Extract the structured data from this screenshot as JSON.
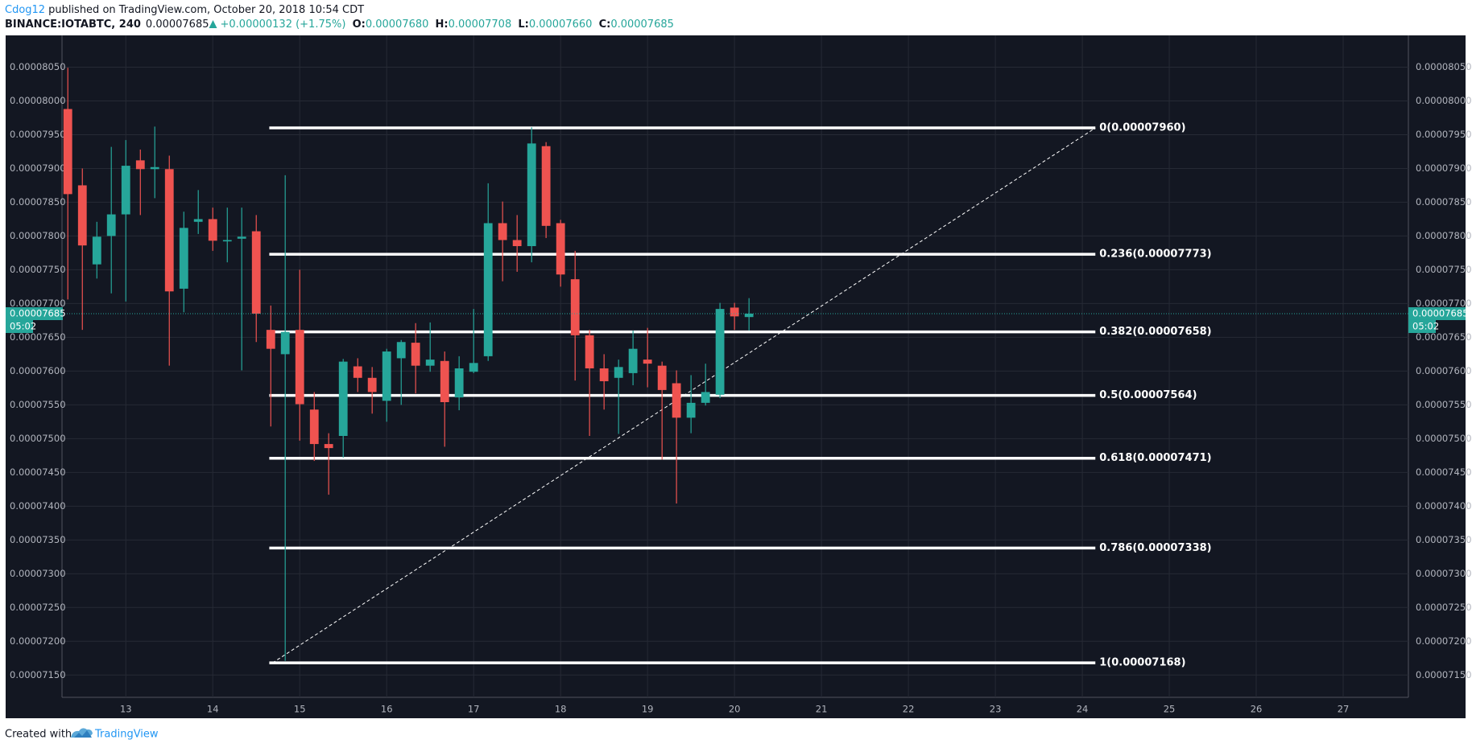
{
  "header": {
    "author": "Cdog12",
    "published": "published on TradingView.com, October 20, 2018 10:54 CDT",
    "symbol": "BINANCE:IOTABTC, 240",
    "price": "0.00007685",
    "change": "+0.00000132 (+1.75%)",
    "ohlc": [
      {
        "key": "O:",
        "value": "0.00007680"
      },
      {
        "key": "H:",
        "value": "0.00007708"
      },
      {
        "key": "L:",
        "value": "0.00007660"
      },
      {
        "key": "C:",
        "value": "0.00007685"
      }
    ]
  },
  "footer": {
    "created": "Created with",
    "brand": "TradingView"
  },
  "chart_data": {
    "type": "candlestick",
    "up_color": "#26a69a",
    "down_color": "#ef5350",
    "grid": true,
    "xlim": [
      12.266,
      27.75
    ],
    "xticks": [
      13,
      14,
      15,
      16,
      17,
      18,
      19,
      20,
      21,
      22,
      23,
      24,
      25,
      26,
      27
    ],
    "ylim": [
      7.117e-05,
      8.097e-05
    ],
    "yticks": [
      {
        "value": 7.15e-05,
        "label": "0.00007150"
      },
      {
        "value": 7.2e-05,
        "label": "0.00007200"
      },
      {
        "value": 7.25e-05,
        "label": "0.00007250"
      },
      {
        "value": 7.3e-05,
        "label": "0.00007300"
      },
      {
        "value": 7.35e-05,
        "label": "0.00007350"
      },
      {
        "value": 7.4e-05,
        "label": "0.00007400"
      },
      {
        "value": 7.45e-05,
        "label": "0.00007450"
      },
      {
        "value": 7.5e-05,
        "label": "0.00007500"
      },
      {
        "value": 7.55e-05,
        "label": "0.00007550"
      },
      {
        "value": 7.6e-05,
        "label": "0.00007600"
      },
      {
        "value": 7.65e-05,
        "label": "0.00007650"
      },
      {
        "value": 7.7e-05,
        "label": "0.00007700"
      },
      {
        "value": 7.75e-05,
        "label": "0.00007750"
      },
      {
        "value": 7.8e-05,
        "label": "0.00007800"
      },
      {
        "value": 7.85e-05,
        "label": "0.00007850"
      },
      {
        "value": 7.9e-05,
        "label": "0.00007900"
      },
      {
        "value": 7.95e-05,
        "label": "0.00007950"
      },
      {
        "value": 8e-05,
        "label": "0.00008000"
      },
      {
        "value": 8.05e-05,
        "label": "0.00008050"
      }
    ],
    "x": [
      12.333,
      12.5,
      12.667,
      12.833,
      13,
      13.167,
      13.333,
      13.5,
      13.667,
      13.833,
      14,
      14.167,
      14.333,
      14.5,
      14.667,
      14.833,
      15,
      15.167,
      15.333,
      15.5,
      15.667,
      15.833,
      16,
      16.167,
      16.333,
      16.5,
      16.667,
      16.833,
      17,
      17.167,
      17.333,
      17.5,
      17.667,
      17.833,
      18,
      18.167,
      18.333,
      18.5,
      18.667,
      18.833,
      19,
      19.167,
      19.333,
      19.5,
      19.667,
      19.833,
      20,
      20.167
    ],
    "open": [
      7.988e-05,
      7.875e-05,
      7.758e-05,
      7.8e-05,
      7.832e-05,
      7.912e-05,
      7.899e-05,
      7.899e-05,
      7.722e-05,
      7.821e-05,
      7.825e-05,
      7.792e-05,
      7.796e-05,
      7.807e-05,
      7.661e-05,
      7.625e-05,
      7.661e-05,
      7.543e-05,
      7.492e-05,
      7.504e-05,
      7.607e-05,
      7.59e-05,
      7.556e-05,
      7.619e-05,
      7.642e-05,
      7.608e-05,
      7.615e-05,
      7.561e-05,
      7.599e-05,
      7.622e-05,
      7.819e-05,
      7.794e-05,
      7.785e-05,
      7.933e-05,
      7.819e-05,
      7.736e-05,
      7.653e-05,
      7.604e-05,
      7.59e-05,
      7.597e-05,
      7.617e-05,
      7.608e-05,
      7.582e-05,
      7.531e-05,
      7.553e-05,
      7.565e-05,
      7.694e-05,
      7.68e-05
    ],
    "high": [
      8.049e-05,
      7.9e-05,
      7.821e-05,
      7.932e-05,
      7.942e-05,
      7.928e-05,
      7.962e-05,
      7.919e-05,
      7.836e-05,
      7.868e-05,
      7.842e-05,
      7.842e-05,
      7.842e-05,
      7.831e-05,
      7.697e-05,
      7.89e-05,
      7.75e-05,
      7.569e-05,
      7.508e-05,
      7.618e-05,
      7.619e-05,
      7.606e-05,
      7.633e-05,
      7.646e-05,
      7.671e-05,
      7.672e-05,
      7.629e-05,
      7.622e-05,
      7.692e-05,
      7.878e-05,
      7.851e-05,
      7.831e-05,
      7.961e-05,
      7.939e-05,
      7.824e-05,
      7.778e-05,
      7.661e-05,
      7.625e-05,
      7.617e-05,
      7.66e-05,
      7.664e-05,
      7.614e-05,
      7.601e-05,
      7.594e-05,
      7.611e-05,
      7.701e-05,
      7.701e-05,
      7.708e-05
    ],
    "low": [
      7.706e-05,
      7.661e-05,
      7.737e-05,
      7.715e-05,
      7.703e-05,
      7.831e-05,
      7.856e-05,
      7.608e-05,
      7.687e-05,
      7.803e-05,
      7.778e-05,
      7.761e-05,
      7.601e-05,
      7.643e-05,
      7.518e-05,
      7.171e-05,
      7.497e-05,
      7.467e-05,
      7.417e-05,
      7.472e-05,
      7.569e-05,
      7.537e-05,
      7.525e-05,
      7.55e-05,
      7.567e-05,
      7.599e-05,
      7.488e-05,
      7.542e-05,
      7.597e-05,
      7.615e-05,
      7.733e-05,
      7.747e-05,
      7.761e-05,
      7.797e-05,
      7.725e-05,
      7.586e-05,
      7.504e-05,
      7.543e-05,
      7.507e-05,
      7.579e-05,
      7.576e-05,
      7.469e-05,
      7.404e-05,
      7.508e-05,
      7.549e-05,
      7.56e-05,
      7.661e-05,
      7.66e-05
    ],
    "close": [
      7.862e-05,
      7.786e-05,
      7.799e-05,
      7.832e-05,
      7.904e-05,
      7.899e-05,
      7.902e-05,
      7.718e-05,
      7.812e-05,
      7.825e-05,
      7.793e-05,
      7.794e-05,
      7.799e-05,
      7.685e-05,
      7.633e-05,
      7.658e-05,
      7.551e-05,
      7.492e-05,
      7.486e-05,
      7.614e-05,
      7.59e-05,
      7.569e-05,
      7.629e-05,
      7.643e-05,
      7.608e-05,
      7.617e-05,
      7.554e-05,
      7.604e-05,
      7.612e-05,
      7.819e-05,
      7.794e-05,
      7.785e-05,
      7.937e-05,
      7.815e-05,
      7.743e-05,
      7.653e-05,
      7.604e-05,
      7.585e-05,
      7.606e-05,
      7.633e-05,
      7.611e-05,
      7.572e-05,
      7.531e-05,
      7.553e-05,
      7.569e-05,
      7.692e-05,
      7.681e-05,
      7.685e-05
    ],
    "fib_x": [
      14.65,
      24.15
    ],
    "fib_levels": [
      {
        "label": "0(0.00007960)",
        "value": 7.96e-05
      },
      {
        "label": "0.236(0.00007773)",
        "value": 7.773e-05
      },
      {
        "label": "0.382(0.00007658)",
        "value": 7.658e-05
      },
      {
        "label": "0.5(0.00007564)",
        "value": 7.564e-05
      },
      {
        "label": "0.618(0.00007471)",
        "value": 7.471e-05
      },
      {
        "label": "0.786(0.00007338)",
        "value": 7.338e-05
      },
      {
        "label": "1(0.00007168)",
        "value": 7.168e-05
      }
    ],
    "last_price": {
      "value": 7.685e-05,
      "label": "0.00007685",
      "countdown": "05:02"
    }
  }
}
